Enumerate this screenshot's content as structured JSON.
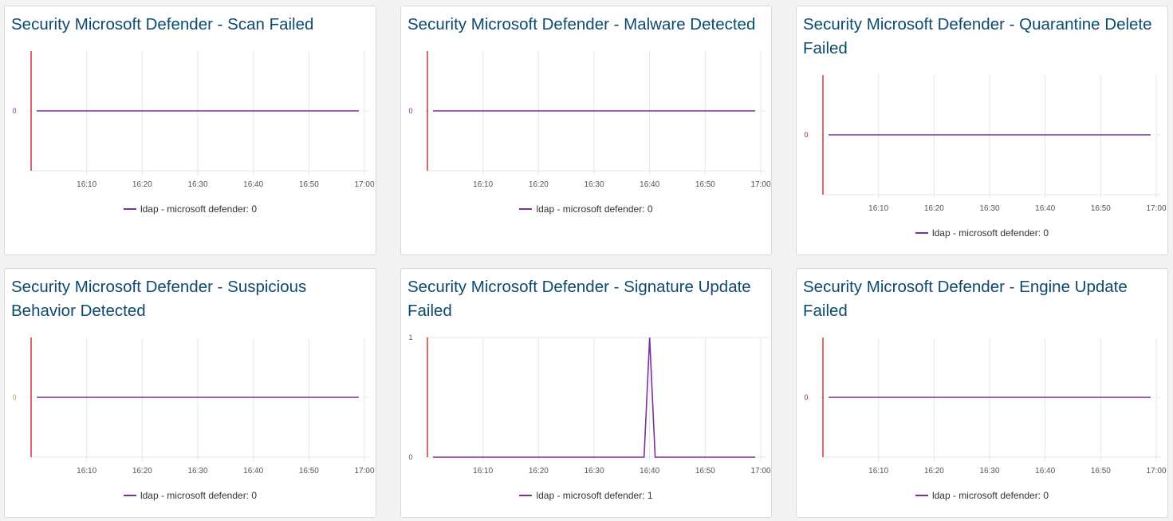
{
  "colors": {
    "series": "#7b2fa0",
    "axis": "#cc0000",
    "grid": "#e6e6e6",
    "title": "#0d4a6e",
    "ytick_default": "#7b2fa0",
    "ytick_alt": "#c8a04a",
    "ytick_red": "#9b1b1b"
  },
  "panels": [
    {
      "title": "Security Microsoft Defender - Scan Failed",
      "legend": "ldap - microsoft defender: 0",
      "ytick_color": "ytick_default",
      "chart_data": {
        "type": "line",
        "x": [
          "16:01",
          "16:10",
          "16:20",
          "16:30",
          "16:40",
          "16:50",
          "16:59"
        ],
        "xticks": [
          "16:10",
          "16:20",
          "16:30",
          "16:40",
          "16:50",
          "17:00"
        ],
        "yticks": [
          "0"
        ],
        "series": [
          {
            "name": "ldap - microsoft defender",
            "x": [
              "16:01",
              "16:59"
            ],
            "values": [
              0,
              0
            ]
          }
        ],
        "ylim": [
          -1,
          1
        ]
      }
    },
    {
      "title": "Security Microsoft Defender - Malware Detected",
      "legend": "ldap - microsoft defender: 0",
      "ytick_color": "ytick_default",
      "chart_data": {
        "type": "line",
        "xticks": [
          "16:10",
          "16:20",
          "16:30",
          "16:40",
          "16:50",
          "17:00"
        ],
        "yticks": [
          "0"
        ],
        "series": [
          {
            "name": "ldap - microsoft defender",
            "x": [
              "16:01",
              "16:59"
            ],
            "values": [
              0,
              0
            ]
          }
        ],
        "ylim": [
          -1,
          1
        ]
      }
    },
    {
      "title": "Security Microsoft Defender - Quarantine Delete Failed",
      "legend": "ldap - microsoft defender: 0",
      "ytick_color": "ytick_red",
      "chart_data": {
        "type": "line",
        "xticks": [
          "16:10",
          "16:20",
          "16:30",
          "16:40",
          "16:50",
          "17:00"
        ],
        "yticks": [
          "0"
        ],
        "series": [
          {
            "name": "ldap - microsoft defender",
            "x": [
              "16:01",
              "16:59"
            ],
            "values": [
              0,
              0
            ]
          }
        ],
        "ylim": [
          -1,
          1
        ]
      }
    },
    {
      "title": "Security Microsoft Defender - Suspicious Behavior Detected",
      "legend": "ldap - microsoft defender: 0",
      "ytick_color": "ytick_alt",
      "chart_data": {
        "type": "line",
        "xticks": [
          "16:10",
          "16:20",
          "16:30",
          "16:40",
          "16:50",
          "17:00"
        ],
        "yticks": [
          "0"
        ],
        "series": [
          {
            "name": "ldap - microsoft defender",
            "x": [
              "16:01",
              "16:59"
            ],
            "values": [
              0,
              0
            ]
          }
        ],
        "ylim": [
          -1,
          1
        ]
      }
    },
    {
      "title": "Security Microsoft Defender - Signature Update Failed",
      "legend": "ldap - microsoft defender: 1",
      "ytick_color": "ytick_default",
      "chart_data": {
        "type": "line",
        "xticks": [
          "16:10",
          "16:20",
          "16:30",
          "16:40",
          "16:50",
          "17:00"
        ],
        "yticks": [
          "0",
          "1"
        ],
        "series": [
          {
            "name": "ldap - microsoft defender",
            "x": [
              "16:01",
              "16:39",
              "16:40",
              "16:41",
              "16:59"
            ],
            "values": [
              0,
              0,
              1,
              0,
              0
            ]
          }
        ],
        "ylim": [
          0,
          1
        ]
      }
    },
    {
      "title": "Security Microsoft Defender - Engine Update Failed",
      "legend": "ldap - microsoft defender: 0",
      "ytick_color": "ytick_red",
      "chart_data": {
        "type": "line",
        "xticks": [
          "16:10",
          "16:20",
          "16:30",
          "16:40",
          "16:50",
          "17:00"
        ],
        "yticks": [
          "0"
        ],
        "series": [
          {
            "name": "ldap - microsoft defender",
            "x": [
              "16:01",
              "16:59"
            ],
            "values": [
              0,
              0
            ]
          }
        ],
        "ylim": [
          -1,
          1
        ]
      }
    }
  ]
}
